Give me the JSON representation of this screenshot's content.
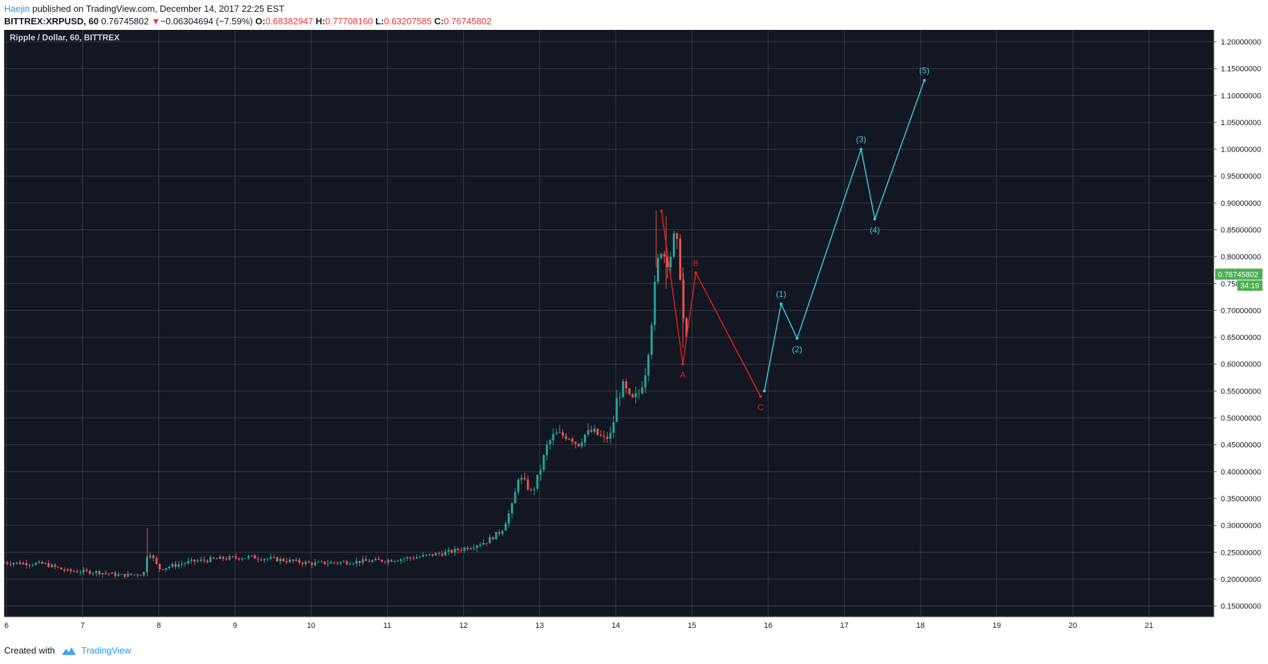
{
  "header": {
    "author": "Haejin",
    "published": " published on TradingView.com, December 14, 2017 22:25 EST"
  },
  "ticker": {
    "symbol": "BITTREX:XRPUSD, 60",
    "last": "0.76745802",
    "arrow": "▼",
    "change": "−0.06304694 (−7.59%)",
    "o_label": "O:",
    "o": "0.68382947",
    "h_label": "H:",
    "h": "0.77708160",
    "l_label": "L:",
    "l": "0.63207585",
    "c_label": "C:",
    "c": "0.76745802"
  },
  "footer": {
    "created": "Created with",
    "brand": "TradingView"
  },
  "chart_data": {
    "type": "line",
    "title": "Ripple / Dollar, 60, BITTREX",
    "colors": {
      "background": "#131722",
      "grid": "#363a45",
      "up": "#26a69a",
      "down": "#ef5350",
      "wave_abc": "#e0211b",
      "wave_impulse": "#3dc8e0",
      "axis_text": "#d1d4dc",
      "price_tag": "#4caf50"
    },
    "x_axis": {
      "label": "",
      "ticks": [
        "6",
        "7",
        "8",
        "9",
        "10",
        "11",
        "12",
        "13",
        "14",
        "15",
        "16",
        "17",
        "18",
        "19",
        "20",
        "21"
      ],
      "tick_values": [
        6,
        7,
        8,
        9,
        10,
        11,
        12,
        13,
        14,
        15,
        16,
        17,
        18,
        19,
        20,
        21
      ],
      "range": [
        5.97,
        21.85
      ]
    },
    "y_axis": {
      "label": "",
      "ticks": [
        "1.20000000",
        "1.15000000",
        "1.10000000",
        "1.05000000",
        "1.00000000",
        "0.95000000",
        "0.90000000",
        "0.85000000",
        "0.80000000",
        "0.75000000",
        "0.70000000",
        "0.65000000",
        "0.60000000",
        "0.55000000",
        "0.50000000",
        "0.45000000",
        "0.40000000",
        "0.35000000",
        "0.30000000",
        "0.25000000",
        "0.20000000",
        "0.15000000"
      ],
      "tick_values": [
        1.2,
        1.15,
        1.1,
        1.05,
        1.0,
        0.95,
        0.9,
        0.85,
        0.8,
        0.75,
        0.7,
        0.65,
        0.6,
        0.55,
        0.5,
        0.45,
        0.4,
        0.35,
        0.3,
        0.25,
        0.2,
        0.15
      ],
      "range": [
        0.13,
        1.222
      ]
    },
    "grid": true,
    "price_tag": {
      "value": 0.76745802,
      "label": "0.76745802",
      "countdown": "34:19"
    },
    "candle_anchors": [
      [
        5.97,
        0.231
      ],
      [
        6.5,
        0.228
      ],
      [
        6.8,
        0.215
      ],
      [
        7.2,
        0.213
      ],
      [
        7.5,
        0.207
      ],
      [
        7.8,
        0.21
      ],
      [
        7.86,
        0.255
      ],
      [
        8.0,
        0.219
      ],
      [
        8.4,
        0.232
      ],
      [
        8.8,
        0.238
      ],
      [
        9.2,
        0.241
      ],
      [
        9.6,
        0.236
      ],
      [
        10.0,
        0.229
      ],
      [
        10.5,
        0.232
      ],
      [
        11.0,
        0.235
      ],
      [
        11.4,
        0.241
      ],
      [
        11.8,
        0.25
      ],
      [
        12.0,
        0.257
      ],
      [
        12.3,
        0.27
      ],
      [
        12.5,
        0.29
      ],
      [
        12.65,
        0.34
      ],
      [
        12.72,
        0.39
      ],
      [
        12.8,
        0.38
      ],
      [
        12.9,
        0.36
      ],
      [
        13.0,
        0.4
      ],
      [
        13.1,
        0.45
      ],
      [
        13.2,
        0.47
      ],
      [
        13.4,
        0.465
      ],
      [
        13.5,
        0.45
      ],
      [
        13.6,
        0.47
      ],
      [
        13.7,
        0.475
      ],
      [
        13.85,
        0.46
      ],
      [
        13.95,
        0.47
      ],
      [
        14.0,
        0.53
      ],
      [
        14.1,
        0.56
      ],
      [
        14.2,
        0.53
      ],
      [
        14.3,
        0.545
      ],
      [
        14.38,
        0.58
      ],
      [
        14.45,
        0.65
      ],
      [
        14.5,
        0.73
      ],
      [
        14.58,
        0.82
      ],
      [
        14.65,
        0.8
      ],
      [
        14.7,
        0.79
      ],
      [
        14.78,
        0.845
      ],
      [
        14.84,
        0.78
      ],
      [
        14.88,
        0.69
      ],
      [
        14.93,
        0.64
      ],
      [
        14.96,
        0.767
      ]
    ],
    "waves": {
      "abc": {
        "points": [
          [
            14.6,
            0.885
          ],
          [
            14.88,
            0.6
          ],
          [
            15.05,
            0.77
          ],
          [
            15.9,
            0.54
          ]
        ],
        "labels": [
          {
            "text": "A",
            "point": 1,
            "pos": "below"
          },
          {
            "text": "B",
            "point": 2,
            "pos": "above"
          },
          {
            "text": "C",
            "point": 3,
            "pos": "below"
          }
        ]
      },
      "impulse": {
        "points": [
          [
            15.95,
            0.55
          ],
          [
            16.17,
            0.712
          ],
          [
            16.38,
            0.648
          ],
          [
            17.22,
            1.0
          ],
          [
            17.4,
            0.87
          ],
          [
            18.05,
            1.128
          ]
        ],
        "labels": [
          {
            "text": "(1)",
            "point": 1,
            "pos": "above"
          },
          {
            "text": "(2)",
            "point": 2,
            "pos": "below"
          },
          {
            "text": "(3)",
            "point": 3,
            "pos": "above"
          },
          {
            "text": "(4)",
            "point": 4,
            "pos": "below"
          },
          {
            "text": "(5)",
            "point": 5,
            "pos": "above"
          }
        ]
      }
    }
  }
}
